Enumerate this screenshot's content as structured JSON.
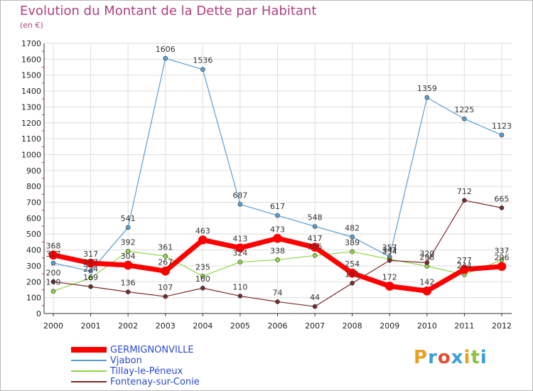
{
  "title": "Evolution du Montant de la Dette par Habitant",
  "subtitle": "(en €)",
  "logo": "Proxiti",
  "chart_data": {
    "type": "line",
    "x": [
      "2000",
      "2001",
      "2002",
      "2003",
      "2004",
      "2005",
      "2006",
      "2007",
      "2008",
      "2009",
      "2010",
      "2011",
      "2012"
    ],
    "ylim": [
      0,
      1700
    ],
    "yticks": [
      0,
      100,
      200,
      300,
      400,
      500,
      600,
      700,
      800,
      900,
      1000,
      1100,
      1200,
      1300,
      1400,
      1500,
      1600,
      1700
    ],
    "grid": true,
    "legend_position": "bottom-left",
    "series": [
      {
        "name": "Vjabon",
        "color": "#5a9fd4",
        "width": 1.2,
        "marker": 3,
        "values": [
          317,
          267,
          541,
          1606,
          1536,
          687,
          617,
          548,
          482,
          357,
          1359,
          1225,
          1123
        ],
        "labels": [
          "317",
          "267",
          "541",
          "1606",
          "1536",
          "687",
          "617",
          "548",
          "482",
          "357",
          "1359",
          "1225",
          "1123"
        ]
      },
      {
        "name": "Tillay-le-Péneux",
        "color": "#8fd44a",
        "width": 1.2,
        "marker": 3,
        "values": [
          140,
          224,
          392,
          361,
          235,
          324,
          338,
          365,
          389,
          342,
          298,
          244,
          337
        ],
        "labels": [
          "140",
          "224",
          "392",
          "361",
          "235",
          "324",
          "338",
          "365",
          "389",
          "342",
          "298",
          "244",
          "337"
        ]
      },
      {
        "name": "Fontenay-sur-Conie",
        "color": "#7a2a2a",
        "width": 1.2,
        "marker": 3,
        "values": [
          200,
          169,
          136,
          107,
          160,
          110,
          74,
          44,
          191,
          334,
          320,
          712,
          665
        ],
        "labels": [
          "200",
          "169",
          "136",
          "107",
          "160",
          "110",
          "74",
          "44",
          "191",
          "334",
          "320",
          "712",
          "665"
        ]
      },
      {
        "name": "GERMIGNONVILLE",
        "color": "#ff0000",
        "width": 7,
        "marker": 6,
        "values": [
          368,
          317,
          304,
          267,
          463,
          413,
          473,
          417,
          254,
          172,
          142,
          277,
          296
        ],
        "labels": [
          "368",
          "317",
          "304",
          "267",
          "463",
          "413",
          "473",
          "417",
          "254",
          "172",
          "142",
          "277",
          "296"
        ]
      }
    ]
  },
  "legend": [
    {
      "name": "GERMIGNONVILLE",
      "color": "#ff0000",
      "thickness": 8
    },
    {
      "name": "Vjabon",
      "color": "#5a9fd4",
      "thickness": 2
    },
    {
      "name": "Tillay-le-Péneux",
      "color": "#8fd44a",
      "thickness": 2
    },
    {
      "name": "Fontenay-sur-Conie",
      "color": "#7a2a2a",
      "thickness": 2
    }
  ]
}
